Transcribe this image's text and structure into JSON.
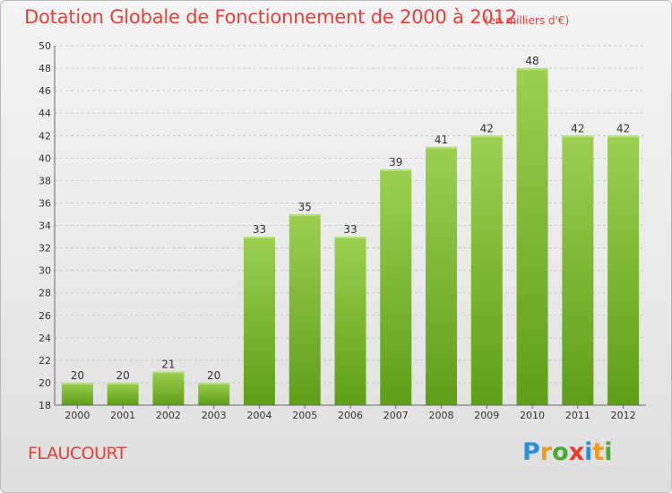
{
  "title": "Dotation Globale de Fonctionnement de 2000 à 2012",
  "subtitle": "(en milliers d'€)",
  "commune": "FLAUCOURT",
  "brand": {
    "letters": [
      "P",
      "r",
      "o",
      "x",
      "i",
      "t",
      "i"
    ],
    "colors": [
      "#2f8fd6",
      "#f29a1f",
      "#49a934",
      "#e63b2e",
      "#2f8fd6",
      "#f29a1f",
      "#49a934"
    ]
  },
  "colors": {
    "title": "#e3413a",
    "bar_top": "#9ccf50",
    "bar_bottom": "#5f9e18",
    "grid": "#c9c9c9",
    "axis_text": "#333333"
  },
  "chart_data": {
    "type": "bar",
    "categories": [
      "2000",
      "2001",
      "2002",
      "2003",
      "2004",
      "2005",
      "2006",
      "2007",
      "2008",
      "2009",
      "2010",
      "2011",
      "2012"
    ],
    "values": [
      20,
      20,
      21,
      20,
      33,
      35,
      33,
      39,
      41,
      42,
      48,
      42,
      42
    ],
    "ylim": [
      18,
      50
    ],
    "yticks": [
      18,
      20,
      22,
      24,
      26,
      28,
      30,
      32,
      34,
      36,
      38,
      40,
      42,
      44,
      46,
      48,
      50
    ],
    "grid": true,
    "data_labels": true
  }
}
